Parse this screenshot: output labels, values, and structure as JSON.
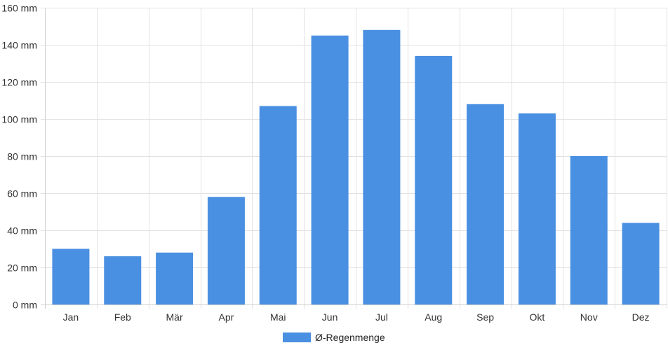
{
  "chart_data": {
    "type": "bar",
    "categories": [
      "Jan",
      "Feb",
      "Mär",
      "Apr",
      "Mai",
      "Jun",
      "Jul",
      "Aug",
      "Sep",
      "Okt",
      "Nov",
      "Dez"
    ],
    "series": [
      {
        "name": "Ø-Regenmenge",
        "values": [
          30,
          26,
          28,
          58,
          107,
          145,
          148,
          134,
          108,
          103,
          80,
          44
        ],
        "color": "#4a90e2"
      }
    ],
    "ylim": [
      0,
      160
    ],
    "yticks": [
      0,
      20,
      40,
      60,
      80,
      100,
      120,
      140,
      160
    ],
    "yunit": "mm",
    "grid": true,
    "legend": "bottom-center"
  }
}
